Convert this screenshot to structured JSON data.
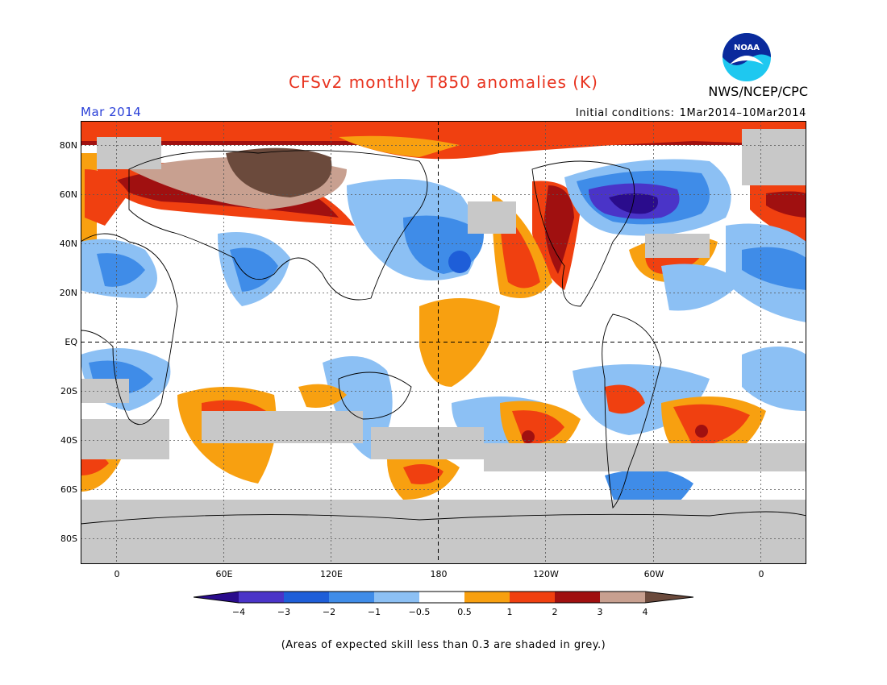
{
  "title": "CFSv2 monthly T850 anomalies (K)",
  "agency": "NWS/NCEP/CPC",
  "logo_text": "NOAA",
  "month": "Mar 2014",
  "initial_conditions": {
    "label": "Initial conditions:",
    "range": "1Mar2014–10Mar2014"
  },
  "lat_labels": [
    "80N",
    "60N",
    "40N",
    "20N",
    "EQ",
    "20S",
    "40S",
    "60S",
    "80S"
  ],
  "lon_labels": [
    "0",
    "60E",
    "120E",
    "180",
    "120W",
    "60W",
    "0"
  ],
  "legend": {
    "ticks": [
      "−4",
      "−3",
      "−2",
      "−1",
      "−0.5",
      "0.5",
      "1",
      "2",
      "3",
      "4"
    ],
    "colors": [
      "#2a0c8c",
      "#4a34c8",
      "#1e5ed8",
      "#3f8ce8",
      "#8cc0f4",
      "#ffffff",
      "#f8a010",
      "#f04010",
      "#a01010",
      "#c8a090",
      "#6b4a3c"
    ]
  },
  "footnote": "(Areas of expected skill less than 0.3 are shaded in grey.)"
}
